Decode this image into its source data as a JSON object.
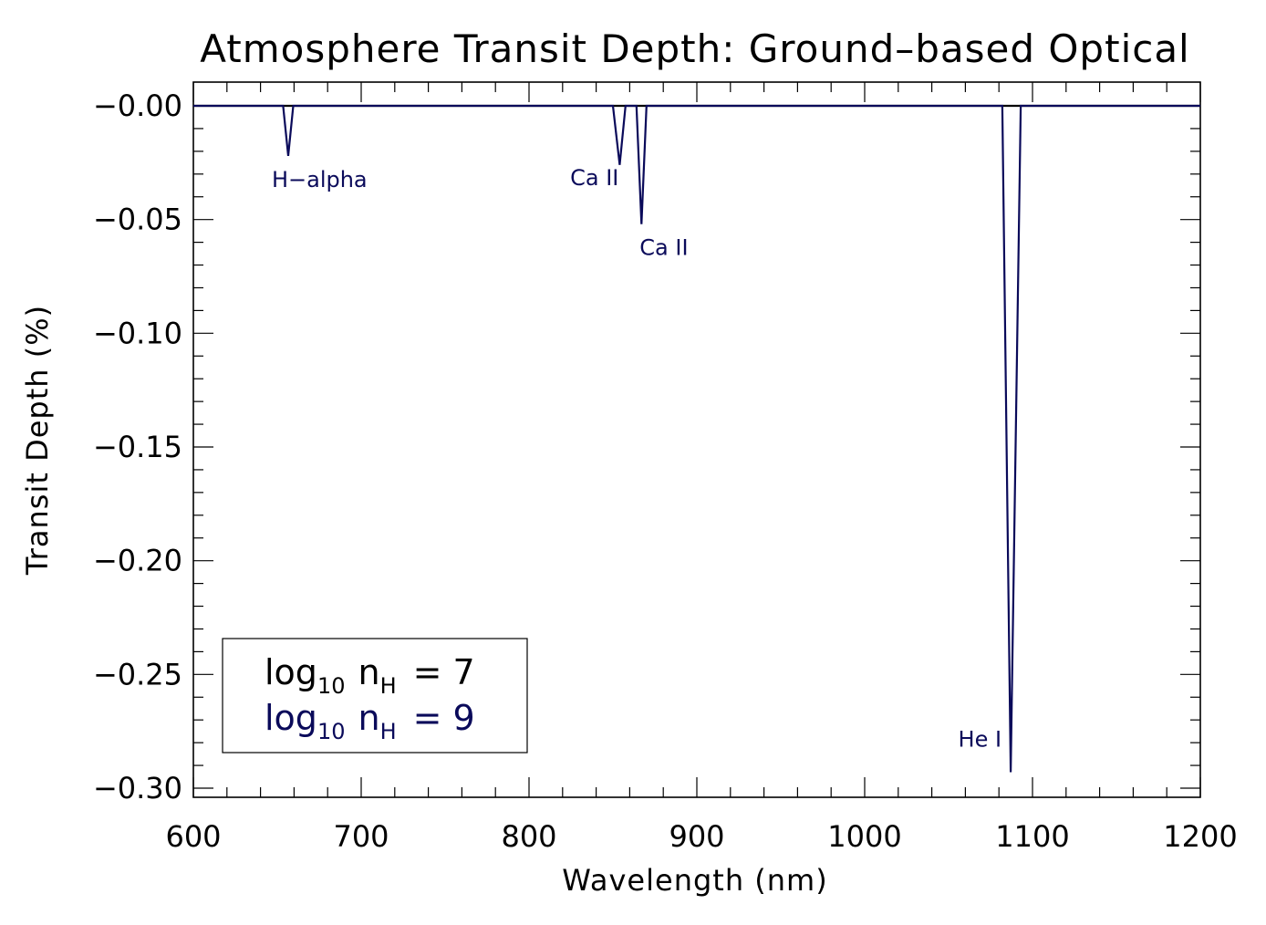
{
  "chart_data": {
    "type": "line",
    "title": "Atmosphere Transit Depth: Ground–based Optical",
    "xlabel": "Wavelength (nm)",
    "ylabel": "Transit Depth (%)",
    "xlim": [
      600,
      1200
    ],
    "ylim": [
      -0.3,
      0.0
    ],
    "x_ticks": [
      600,
      700,
      800,
      900,
      1000,
      1100,
      1200
    ],
    "x_tick_labels": [
      "600",
      "700",
      "800",
      "900",
      "1000",
      "1100",
      "1200"
    ],
    "y_ticks": [
      0.0,
      -0.05,
      -0.1,
      -0.15,
      -0.2,
      -0.25,
      -0.3
    ],
    "y_tick_labels": [
      "−0.00",
      "−0.05",
      "−0.10",
      "−0.15",
      "−0.20",
      "−0.25",
      "−0.30"
    ],
    "grid": false,
    "series": [
      {
        "name": "log10 nH = 7",
        "color": "#000000",
        "x": [
          600,
          1200
        ],
        "y": [
          0.0,
          0.0
        ]
      },
      {
        "name": "log10 nH = 9",
        "color": "#0a0a5a",
        "x": [
          600,
          653.5,
          656.5,
          659.5,
          850,
          854,
          857.5,
          864,
          867,
          870,
          1082,
          1087,
          1093,
          1200
        ],
        "y": [
          0.0,
          0.0,
          -0.022,
          0.0,
          0.0,
          -0.026,
          0.0,
          0.0,
          -0.052,
          0.0,
          0.0,
          -0.293,
          0.0,
          0.0
        ]
      }
    ],
    "annotations": [
      {
        "text": "H−alpha",
        "x": 656.5,
        "y": -0.022
      },
      {
        "text": "Ca II",
        "x": 854,
        "y": -0.026
      },
      {
        "text": "Ca II",
        "x": 867,
        "y": -0.052
      },
      {
        "text": "He I",
        "x": 1087,
        "y": -0.293
      }
    ],
    "legend": {
      "placement": "bottom-left",
      "entries": [
        {
          "prefix": "log",
          "sub1": "10",
          "var": "n",
          "sub2": "H",
          "suffix": "= 7",
          "color": "#000000"
        },
        {
          "prefix": "log",
          "sub1": "10",
          "var": "n",
          "sub2": "H",
          "suffix": "= 9",
          "color": "#0a0a5a"
        }
      ]
    }
  }
}
